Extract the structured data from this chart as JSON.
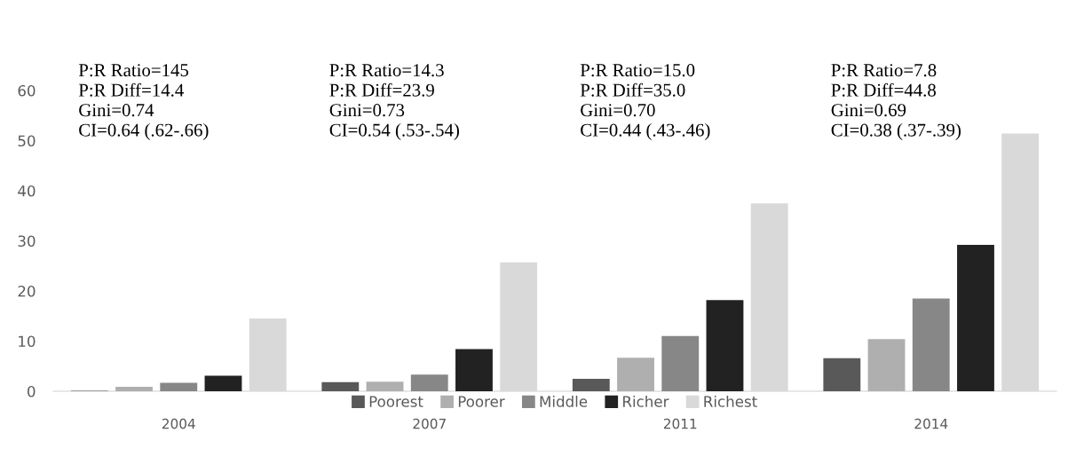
{
  "chart_data": {
    "type": "bar",
    "categories": [
      "2004",
      "2007",
      "2011",
      "2014"
    ],
    "series": [
      {
        "name": "Poorest",
        "color": "#595959",
        "values": [
          0.1,
          1.8,
          2.5,
          6.6
        ]
      },
      {
        "name": "Poorer",
        "color": "#afafaf",
        "values": [
          0.9,
          1.9,
          6.7,
          10.4
        ]
      },
      {
        "name": "Middle",
        "color": "#878787",
        "values": [
          1.7,
          3.3,
          11.0,
          18.5
        ]
      },
      {
        "name": "Richer",
        "color": "#222222",
        "values": [
          3.1,
          8.4,
          18.2,
          29.2
        ]
      },
      {
        "name": "Richest",
        "color": "#d9d9d9",
        "values": [
          14.5,
          25.7,
          37.5,
          51.4
        ]
      }
    ],
    "ylim": [
      0,
      60
    ],
    "yticks": [
      0,
      10,
      20,
      30,
      40,
      50,
      60
    ],
    "annotations": [
      "P:R Ratio=145\nP:R Diff=14.4\nGini=0.74\nCI=0.64 (.62-.66)",
      "P:R Ratio=14.3\nP:R Diff=23.9\nGini=0.73\nCI=0.54 (.53-.54)",
      "P:R Ratio=15.0\nP:R Diff=35.0\nGini=0.70\nCI=0.44 (.43-.46)",
      "P:R Ratio=7.8\nP:R Diff=44.8\nGini=0.69\nCI=0.38 (.37-.39)"
    ],
    "legend": "bottom",
    "grid": false
  }
}
